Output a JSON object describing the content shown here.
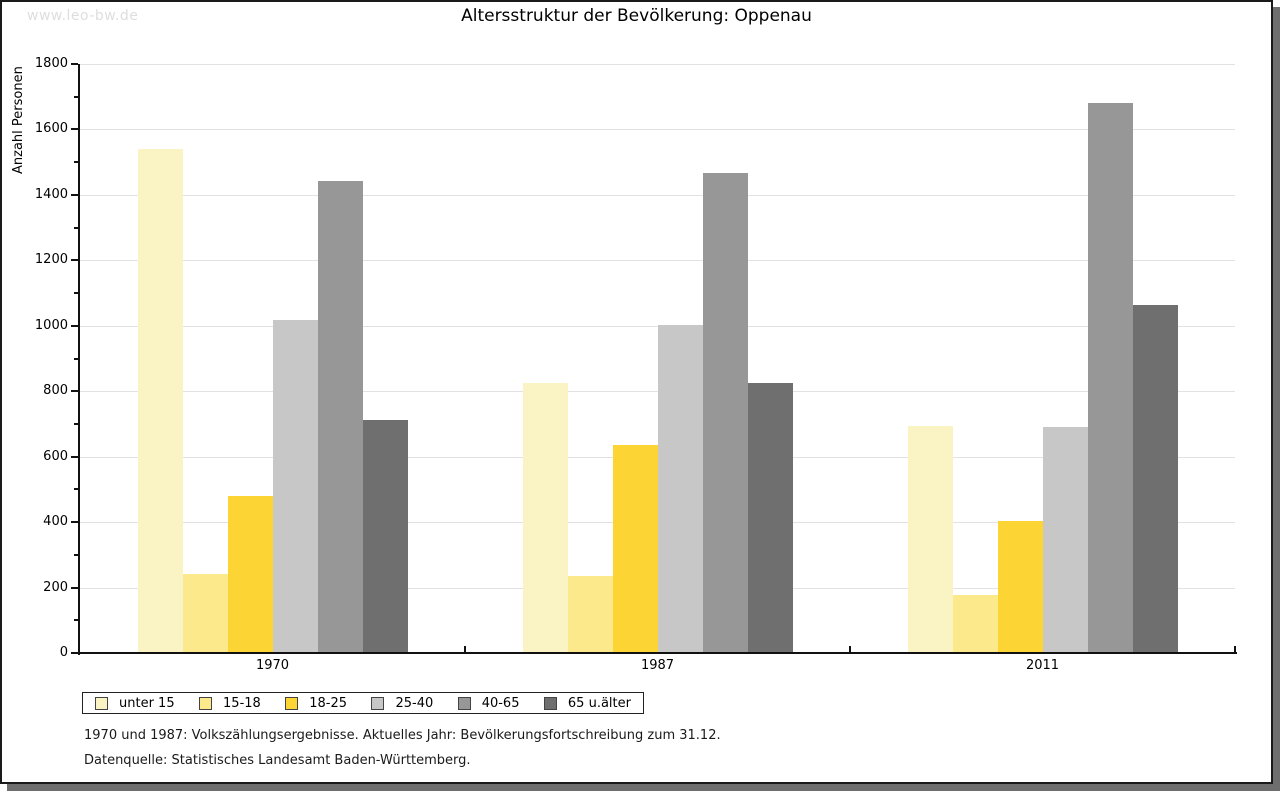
{
  "watermark": "www.leo-bw.de",
  "title": "Altersstruktur der Bevölkerung: Oppenau",
  "chart_data": {
    "type": "bar",
    "title": "Altersstruktur der Bevölkerung: Oppenau",
    "xlabel": "",
    "ylabel": "Anzahl Personen",
    "ylim": [
      0,
      1800
    ],
    "ytick_step": 200,
    "yminor_step": 100,
    "grid": true,
    "legend_position": "bottom",
    "categories": [
      "1970",
      "1987",
      "2011"
    ],
    "series": [
      {
        "name": "unter 15",
        "color": "#FAF3C4",
        "values": [
          1540,
          826,
          695
        ]
      },
      {
        "name": "15-18",
        "color": "#FBE98B",
        "values": [
          243,
          235,
          176
        ]
      },
      {
        "name": "18-25",
        "color": "#FCD535",
        "values": [
          481,
          637,
          404
        ]
      },
      {
        "name": "25-40",
        "color": "#C7C7C7",
        "values": [
          1019,
          1001,
          691
        ]
      },
      {
        "name": "40-65",
        "color": "#979797",
        "values": [
          1443,
          1467,
          1680
        ]
      },
      {
        "name": "65 u.älter",
        "color": "#6F6F6F",
        "values": [
          713,
          825,
          1064
        ]
      }
    ]
  },
  "footnotes": {
    "line1": "1970 und 1987: Volkszählungsergebnisse. Aktuelles Jahr: Bevölkerungsfortschreibung zum 31.12.",
    "line2": "Datenquelle: Statistisches Landesamt Baden-Württemberg."
  },
  "colors": {
    "frame_border": "#1A1A1A",
    "shadow": "#6E6E6E",
    "grid": "#E2E2E2",
    "watermark_text": "#DEDEDE"
  }
}
